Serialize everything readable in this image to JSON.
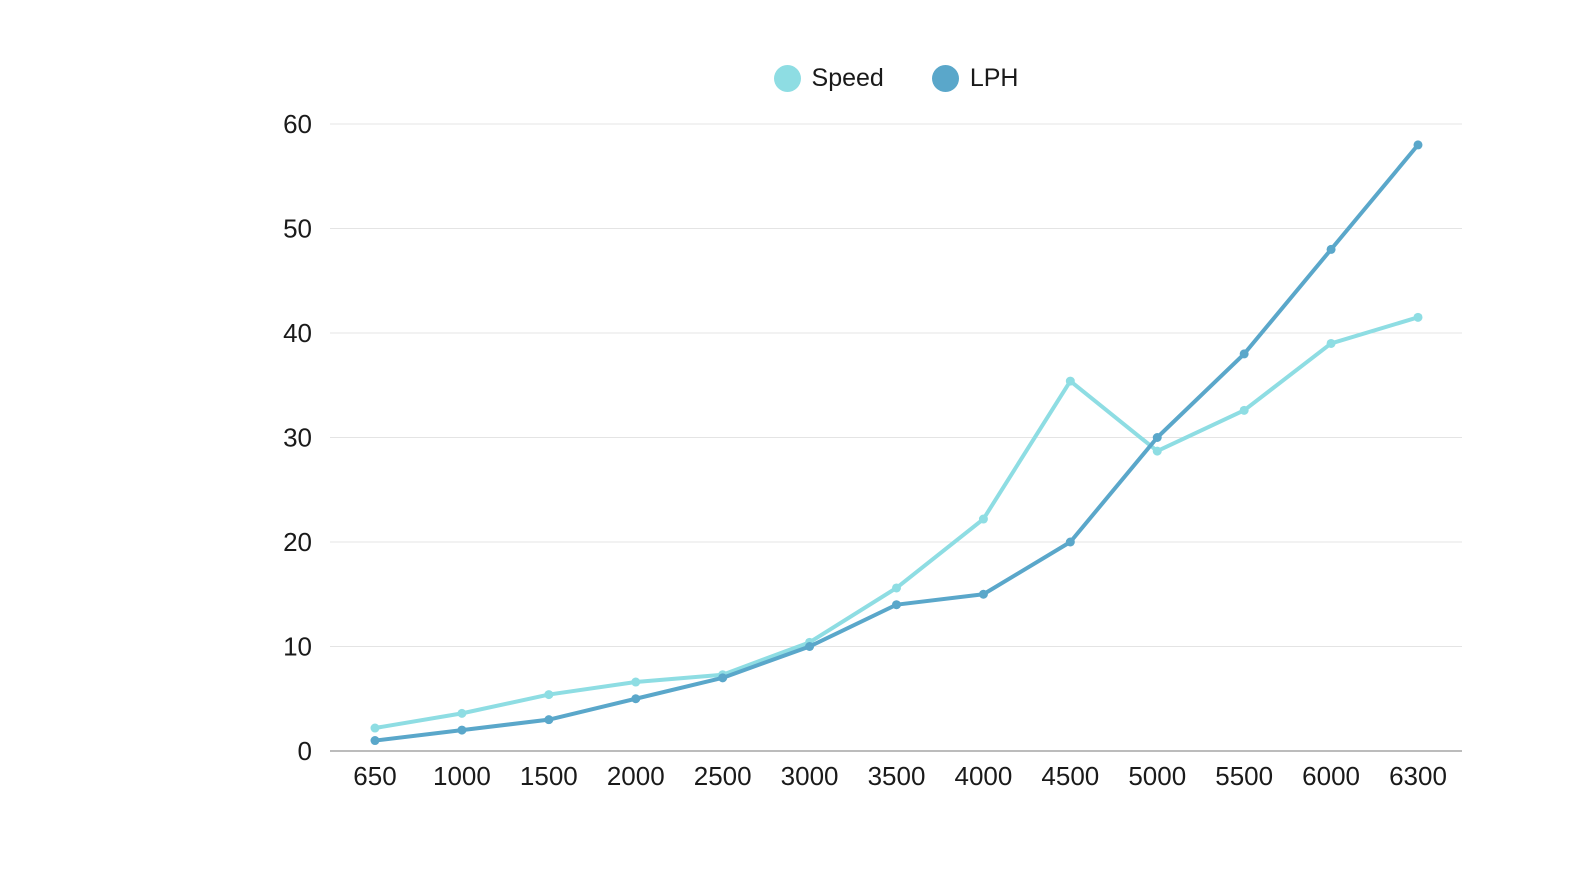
{
  "chart_data": {
    "type": "line",
    "categories": [
      "650",
      "1000",
      "1500",
      "2000",
      "2500",
      "3000",
      "3500",
      "4000",
      "4500",
      "5000",
      "5500",
      "6000",
      "6300"
    ],
    "series": [
      {
        "name": "Speed",
        "color": "#8edde3",
        "values": [
          2.2,
          3.6,
          5.4,
          6.6,
          7.3,
          10.4,
          15.6,
          22.2,
          35.4,
          28.7,
          32.6,
          39,
          41.5
        ]
      },
      {
        "name": "LPH",
        "color": "#5aa7ca",
        "values": [
          1,
          2,
          3,
          5,
          7,
          10,
          14,
          15,
          20,
          30,
          38,
          48,
          58
        ]
      }
    ],
    "y_ticks": [
      0,
      10,
      20,
      30,
      40,
      50,
      60
    ],
    "ylim": [
      0,
      60
    ],
    "grid": true,
    "legend_position": "top-center",
    "colors": {
      "grid": "#e4e4e4",
      "axis": "#a6a6a6",
      "tick_text": "#1a1a1a"
    }
  }
}
